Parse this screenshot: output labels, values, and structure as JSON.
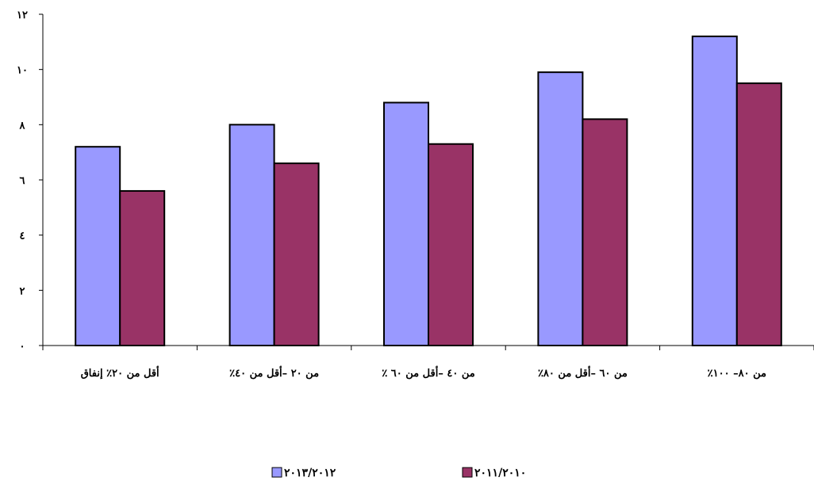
{
  "chart_data": {
    "type": "bar",
    "title": "",
    "xlabel": "",
    "ylabel": "",
    "ylim": [
      0,
      12
    ],
    "yticks": [
      {
        "value": 0,
        "label": "٠"
      },
      {
        "value": 2,
        "label": "٢"
      },
      {
        "value": 4,
        "label": "٤"
      },
      {
        "value": 6,
        "label": "٦"
      },
      {
        "value": 8,
        "label": "٨"
      },
      {
        "value": 10,
        "label": "١٠"
      },
      {
        "value": 12,
        "label": "١٢"
      }
    ],
    "categories": [
      "أقل من ٢٠٪ إنفاق",
      "من ٢٠ –أقل من ٤٠٪",
      "من ٤٠ –أقل من ٦٠ ٪",
      "من ٦٠ –أقل من ٨٠٪",
      "من ٨٠– ١٠٠٪"
    ],
    "series": [
      {
        "name": "٢٠١٣/٢٠١٢",
        "color": "#9999ff",
        "values": [
          7.2,
          8.0,
          8.8,
          9.9,
          11.2
        ]
      },
      {
        "name": "٢٠١١/٢٠١٠",
        "color": "#993366",
        "values": [
          5.6,
          6.6,
          7.3,
          8.2,
          9.5
        ]
      }
    ],
    "legend_position": "bottom",
    "grid": false
  }
}
